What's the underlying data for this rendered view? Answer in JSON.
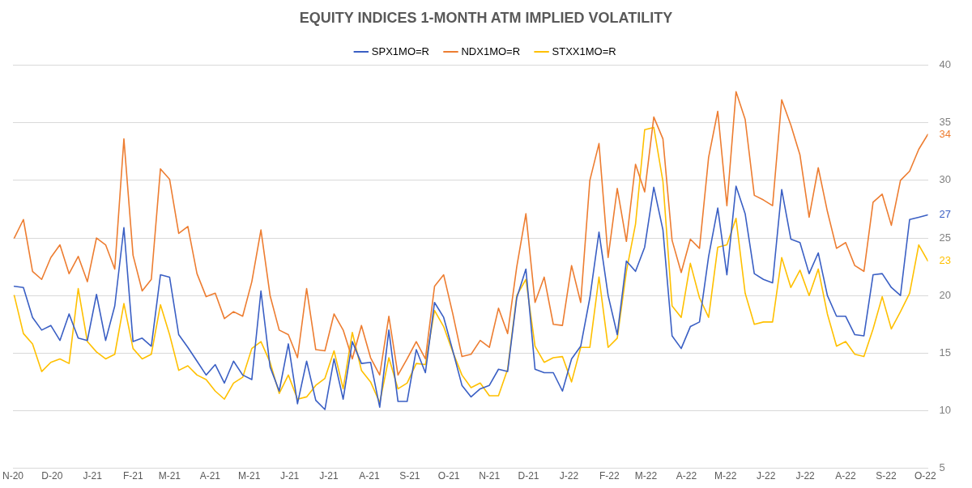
{
  "chart_data": {
    "type": "line",
    "title": "EQUITY INDICES 1-MONTH ATM IMPLIED VOLATILITY",
    "x": [
      "2020-11-02",
      "2020-11-09",
      "2020-11-16",
      "2020-11-23",
      "2020-11-30",
      "2020-12-07",
      "2020-12-14",
      "2020-12-21",
      "2020-12-28",
      "2021-01-04",
      "2021-01-11",
      "2021-01-18",
      "2021-01-25",
      "2021-02-01",
      "2021-02-08",
      "2021-02-15",
      "2021-02-22",
      "2021-03-01",
      "2021-03-08",
      "2021-03-15",
      "2021-03-22",
      "2021-03-29",
      "2021-04-05",
      "2021-04-12",
      "2021-04-19",
      "2021-04-26",
      "2021-05-03",
      "2021-05-10",
      "2021-05-17",
      "2021-05-24",
      "2021-05-31",
      "2021-06-07",
      "2021-06-14",
      "2021-06-21",
      "2021-06-28",
      "2021-07-05",
      "2021-07-12",
      "2021-07-19",
      "2021-07-26",
      "2021-08-02",
      "2021-08-09",
      "2021-08-16",
      "2021-08-23",
      "2021-08-30",
      "2021-09-06",
      "2021-09-13",
      "2021-09-20",
      "2021-09-27",
      "2021-10-04",
      "2021-10-11",
      "2021-10-18",
      "2021-10-25",
      "2021-11-01",
      "2021-11-08",
      "2021-11-15",
      "2021-11-22",
      "2021-11-29",
      "2021-12-06",
      "2021-12-13",
      "2021-12-20",
      "2021-12-27",
      "2022-01-03",
      "2022-01-10",
      "2022-01-17",
      "2022-01-24",
      "2022-01-31",
      "2022-02-07",
      "2022-02-14",
      "2022-02-21",
      "2022-02-28",
      "2022-03-07",
      "2022-03-14",
      "2022-03-21",
      "2022-03-28",
      "2022-04-04",
      "2022-04-11",
      "2022-04-18",
      "2022-04-25",
      "2022-05-02",
      "2022-05-09",
      "2022-05-16",
      "2022-05-23",
      "2022-05-30",
      "2022-06-06",
      "2022-06-13",
      "2022-06-20",
      "2022-06-27",
      "2022-07-04",
      "2022-07-11",
      "2022-07-18",
      "2022-07-25",
      "2022-08-01",
      "2022-08-08",
      "2022-08-15",
      "2022-08-22",
      "2022-08-29",
      "2022-09-05",
      "2022-09-12",
      "2022-09-19",
      "2022-09-26",
      "2022-10-03"
    ],
    "series": [
      {
        "name": "SPX1MO=R",
        "color": "#3a5fc4",
        "values": [
          20.8,
          20.7,
          18.1,
          17.0,
          17.4,
          16.1,
          18.4,
          16.3,
          16.1,
          20.1,
          16.1,
          19.1,
          25.9,
          16.0,
          16.3,
          15.6,
          21.8,
          21.6,
          16.6,
          15.5,
          14.3,
          13.1,
          14.0,
          12.4,
          14.3,
          13.1,
          12.7,
          20.4,
          13.8,
          11.7,
          15.8,
          10.6,
          14.3,
          10.9,
          10.1,
          14.5,
          11.0,
          16.0,
          14.1,
          14.2,
          10.3,
          17.0,
          10.8,
          10.8,
          15.3,
          13.3,
          19.4,
          18.1,
          15.2,
          12.2,
          11.2,
          11.9,
          12.2,
          13.6,
          13.4,
          19.8,
          22.3,
          13.6,
          13.3,
          13.3,
          11.7,
          14.5,
          15.6,
          19.8,
          25.5,
          20.0,
          16.6,
          23.0,
          22.1,
          24.2,
          29.4,
          25.7,
          16.5,
          15.4,
          17.3,
          17.7,
          23.4,
          27.6,
          21.8,
          29.5,
          27.1,
          21.9,
          21.4,
          21.1,
          29.2,
          24.9,
          24.6,
          21.9,
          23.7,
          20.0,
          18.2,
          18.2,
          16.6,
          16.5,
          21.8,
          21.9,
          20.7,
          20.0,
          26.6,
          26.8,
          27
        ],
        "value_labels": [
          null,
          null,
          null,
          null,
          null,
          null,
          null,
          null,
          null,
          null,
          null,
          null,
          null,
          null,
          null,
          null,
          null,
          null,
          null,
          null,
          null,
          null,
          null,
          null,
          null,
          null,
          null,
          null,
          null,
          null,
          null,
          null,
          null,
          null,
          null,
          null,
          null,
          null,
          null,
          null,
          null,
          null,
          null,
          null,
          null,
          null,
          null,
          null,
          null,
          null,
          null,
          null,
          null,
          null,
          null,
          null,
          null,
          null,
          null,
          null,
          null,
          null,
          null,
          null,
          null,
          null,
          null,
          null,
          null,
          null,
          null,
          null,
          null,
          null,
          null,
          null,
          null,
          null,
          null,
          null,
          null,
          null,
          null,
          null,
          null,
          null,
          null,
          null,
          null,
          null,
          null,
          null,
          null,
          null,
          null,
          null,
          null,
          null,
          null,
          null,
          "27"
        ]
      },
      {
        "name": "NDX1MO=R",
        "color": "#ed7d31",
        "values": [
          25,
          26.6,
          22.1,
          21.4,
          23.3,
          24.4,
          21.9,
          23.4,
          21.2,
          25,
          24.4,
          22.3,
          33.6,
          23.5,
          20.4,
          21.4,
          31,
          30.1,
          25.4,
          26,
          21.9,
          19.9,
          20.2,
          18.0,
          18.6,
          18.2,
          21.2,
          25.7,
          20.0,
          17.0,
          16.6,
          14.6,
          20.6,
          15.3,
          15.2,
          18.4,
          17.0,
          14.5,
          17.4,
          14.6,
          13.1,
          18.2,
          13.1,
          14.5,
          16.0,
          14.5,
          20.8,
          21.8,
          18.4,
          14.7,
          14.9,
          16.1,
          15.5,
          18.9,
          16.7,
          22.5,
          27.1,
          19.4,
          21.6,
          17.5,
          17.4,
          22.6,
          19.4,
          30.0,
          33.2,
          23.3,
          29.3,
          24.7,
          31.4,
          29.0,
          35.5,
          33.6,
          24.8,
          22.0,
          24.9,
          24.1,
          32.0,
          36.0,
          27.8,
          37.7,
          35.3,
          28.7,
          28.3,
          27.8,
          37.0,
          34.8,
          32.2,
          26.8,
          31.1,
          27.3,
          24.1,
          24.6,
          22.6,
          22.1,
          28.1,
          28.8,
          26.1,
          30.0,
          30.8,
          32.7,
          34
        ],
        "value_labels": [
          null,
          null,
          null,
          null,
          null,
          null,
          null,
          null,
          null,
          null,
          null,
          null,
          null,
          null,
          null,
          null,
          null,
          null,
          null,
          null,
          null,
          null,
          null,
          null,
          null,
          null,
          null,
          null,
          null,
          null,
          null,
          null,
          null,
          null,
          null,
          null,
          null,
          null,
          null,
          null,
          null,
          null,
          null,
          null,
          null,
          null,
          null,
          null,
          null,
          null,
          null,
          null,
          null,
          null,
          null,
          null,
          null,
          null,
          null,
          null,
          null,
          null,
          null,
          null,
          null,
          null,
          null,
          null,
          null,
          null,
          null,
          null,
          null,
          null,
          null,
          null,
          null,
          null,
          null,
          null,
          null,
          null,
          null,
          null,
          null,
          null,
          null,
          null,
          null,
          null,
          null,
          null,
          null,
          null,
          null,
          null,
          null,
          null,
          null,
          null,
          "34"
        ]
      },
      {
        "name": "STXX1MO=R",
        "color": "#ffc000",
        "values": [
          20,
          16.7,
          15.8,
          13.4,
          14.2,
          14.5,
          14.1,
          20.6,
          16.0,
          15.1,
          14.5,
          14.9,
          19.3,
          15.4,
          14.5,
          14.9,
          19.2,
          16.6,
          13.5,
          13.9,
          13.1,
          12.7,
          11.7,
          11.0,
          12.4,
          12.9,
          15.4,
          16.0,
          14.2,
          11.5,
          13.1,
          11.0,
          11.2,
          12.2,
          12.8,
          15.2,
          11.9,
          16.8,
          13.5,
          12.5,
          10.7,
          14.6,
          11.9,
          12.4,
          14.1,
          14.0,
          18.7,
          17.3,
          15.1,
          13.1,
          12.0,
          12.4,
          11.3,
          11.3,
          13.6,
          20.0,
          21.4,
          15.6,
          14.2,
          14.6,
          14.7,
          12.5,
          15.5,
          15.5,
          21.6,
          15.5,
          16.3,
          22.1,
          26.2,
          34.4,
          34.6,
          29.9,
          19.1,
          18.1,
          22.8,
          19.8,
          18.1,
          24.2,
          24.4,
          26.7,
          20.2,
          17.5,
          17.7,
          17.7,
          23.3,
          20.7,
          22.2,
          20.0,
          22.3,
          18.4,
          15.6,
          16.0,
          14.9,
          14.7,
          17.1,
          19.9,
          17.1,
          18.6,
          20.2,
          24.4,
          23
        ],
        "value_labels": [
          null,
          null,
          null,
          null,
          null,
          null,
          null,
          null,
          null,
          null,
          null,
          null,
          null,
          null,
          null,
          null,
          null,
          null,
          null,
          null,
          null,
          null,
          null,
          null,
          null,
          null,
          null,
          null,
          null,
          null,
          null,
          null,
          null,
          null,
          null,
          null,
          null,
          null,
          null,
          null,
          null,
          null,
          null,
          null,
          null,
          null,
          null,
          null,
          null,
          null,
          null,
          null,
          null,
          null,
          null,
          null,
          null,
          null,
          null,
          null,
          null,
          null,
          null,
          null,
          null,
          null,
          null,
          null,
          null,
          null,
          null,
          null,
          null,
          null,
          null,
          null,
          null,
          null,
          null,
          null,
          null,
          null,
          null,
          null,
          null,
          null,
          null,
          null,
          null,
          null,
          null,
          null,
          null,
          null,
          null,
          null,
          null,
          null,
          null,
          null,
          "23"
        ]
      }
    ],
    "xlim": [
      "2020-11-01",
      "2022-10-03"
    ],
    "xticks": [
      {
        "value": "2020-11-01",
        "label": "N-20"
      },
      {
        "value": "2020-12-01",
        "label": "D-20"
      },
      {
        "value": "2021-01-01",
        "label": "J-21"
      },
      {
        "value": "2021-02-01",
        "label": "F-21"
      },
      {
        "value": "2021-03-01",
        "label": "M-21"
      },
      {
        "value": "2021-04-01",
        "label": "A-21"
      },
      {
        "value": "2021-05-01",
        "label": "M-21"
      },
      {
        "value": "2021-06-01",
        "label": "J-21"
      },
      {
        "value": "2021-07-01",
        "label": "J-21"
      },
      {
        "value": "2021-08-01",
        "label": "A-21"
      },
      {
        "value": "2021-09-01",
        "label": "S-21"
      },
      {
        "value": "2021-10-01",
        "label": "O-21"
      },
      {
        "value": "2021-11-01",
        "label": "N-21"
      },
      {
        "value": "2021-12-01",
        "label": "D-21"
      },
      {
        "value": "2022-01-01",
        "label": "J-22"
      },
      {
        "value": "2022-02-01",
        "label": "F-22"
      },
      {
        "value": "2022-03-01",
        "label": "M-22"
      },
      {
        "value": "2022-04-01",
        "label": "A-22"
      },
      {
        "value": "2022-05-01",
        "label": "M-22"
      },
      {
        "value": "2022-06-01",
        "label": "J-22"
      },
      {
        "value": "2022-07-01",
        "label": "J-22"
      },
      {
        "value": "2022-08-01",
        "label": "A-22"
      },
      {
        "value": "2022-09-01",
        "label": "S-22"
      },
      {
        "value": "2022-10-01",
        "label": "O-22"
      }
    ],
    "ylim": [
      5,
      40
    ],
    "yticks": [
      5,
      10,
      15,
      20,
      25,
      30,
      35,
      40
    ],
    "grid": "y",
    "legend": "top",
    "marker": "none",
    "line_style": "solid"
  }
}
